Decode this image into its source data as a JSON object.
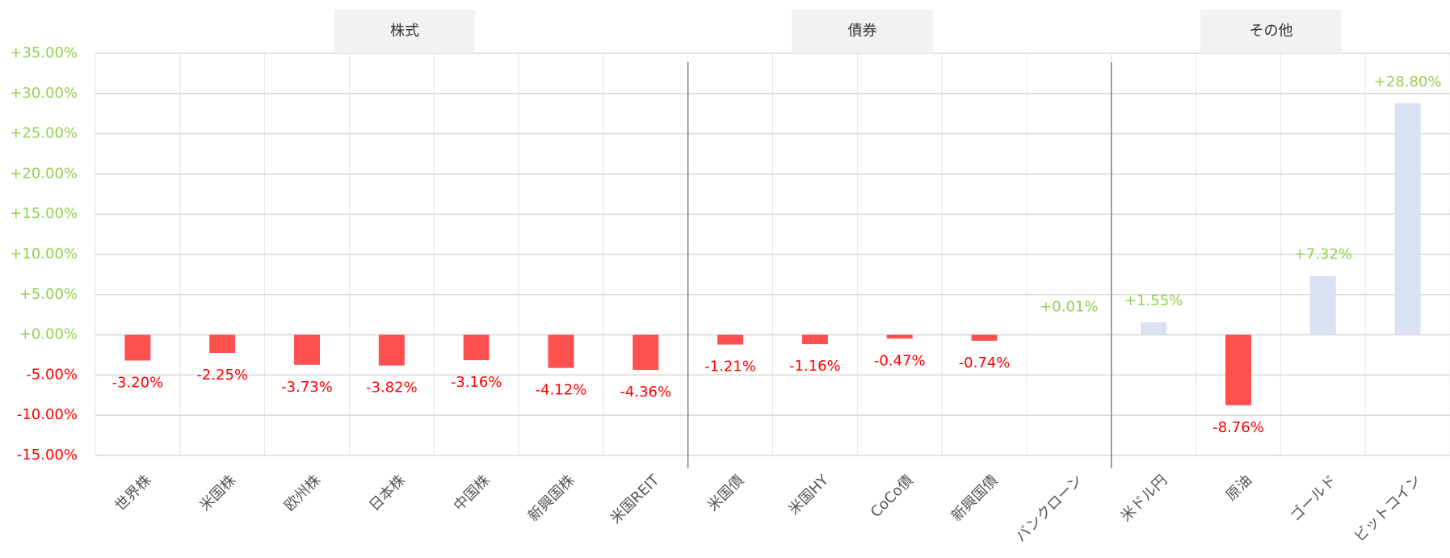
{
  "chart_data": {
    "type": "bar",
    "groups": [
      "株式",
      "債券",
      "その他"
    ],
    "categories": [
      "世界株",
      "米国株",
      "欧州株",
      "日本株",
      "中国株",
      "新興国株",
      "米国REIT",
      "米国債",
      "米国HY",
      "CoCo債",
      "新興国債",
      "バンクローン",
      "米ドル円",
      "原油",
      "ゴールド",
      "ビットコイン"
    ],
    "values": [
      -3.2,
      -2.25,
      -3.73,
      -3.82,
      -3.16,
      -4.12,
      -4.36,
      -1.21,
      -1.16,
      -0.47,
      -0.74,
      0.01,
      1.55,
      -8.76,
      7.32,
      28.8
    ],
    "value_labels": [
      "-3.20%",
      "-2.25%",
      "-3.73%",
      "-3.82%",
      "-3.16%",
      "-4.12%",
      "-4.36%",
      "-1.21%",
      "-1.16%",
      "-0.47%",
      "-0.74%",
      "+0.01%",
      "+1.55%",
      "-8.76%",
      "+7.32%",
      "+28.80%"
    ],
    "colors": {
      "negative": "#ff5050",
      "positive": "#d9e1f2",
      "negative_text": "#ff0000",
      "positive_text": "#92d050"
    },
    "ylim": [
      -15,
      35
    ],
    "yticks": [
      {
        "value": -15,
        "label": "-15.00%"
      },
      {
        "value": -10,
        "label": "-10.00%"
      },
      {
        "value": -5,
        "label": "-5.00%"
      },
      {
        "value": 0,
        "label": "+0.00%"
      },
      {
        "value": 5,
        "label": "+5.00%"
      },
      {
        "value": 10,
        "label": "+10.00%"
      },
      {
        "value": 15,
        "label": "+15.00%"
      },
      {
        "value": 20,
        "label": "+20.00%"
      },
      {
        "value": 25,
        "label": "+25.00%"
      },
      {
        "value": 30,
        "label": "+30.00%"
      },
      {
        "value": 35,
        "label": "+35.00%"
      }
    ],
    "grid": true
  }
}
